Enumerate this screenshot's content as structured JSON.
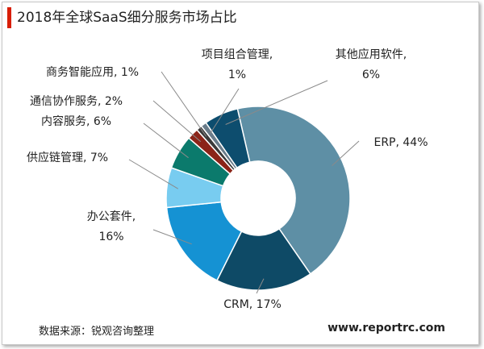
{
  "title": "2018年全球SaaS细分服务市场占比",
  "colors": {
    "title_accent": "#d81e06",
    "ring_inner": "#ffffff",
    "leader_line": "#8a8a8a"
  },
  "chart_data": {
    "type": "pie",
    "donut": true,
    "title": "2018年全球SaaS细分服务市场占比",
    "unit": "%",
    "legend": "none",
    "slices": [
      {
        "name": "ERP",
        "value": 44,
        "color": "#5e8fa5",
        "label_lines": [
          "ERP, 44%"
        ]
      },
      {
        "name": "CRM",
        "value": 17,
        "color": "#0e4a66",
        "label_lines": [
          "CRM, 17%"
        ]
      },
      {
        "name": "办公套件",
        "value": 16,
        "color": "#1592d3",
        "label_lines": [
          "办公套件,",
          "16%"
        ]
      },
      {
        "name": "供应链管理",
        "value": 7,
        "color": "#78ccf0",
        "label_lines": [
          "供应链管理, 7%"
        ]
      },
      {
        "name": "内容服务",
        "value": 6,
        "color": "#0b7a6c",
        "label_lines": [
          "内容服务, 6%"
        ]
      },
      {
        "name": "通信协作服务",
        "value": 2,
        "color": "#8b2418",
        "label_lines": [
          "通信协作服务, 2%"
        ]
      },
      {
        "name": "商务智能应用",
        "value": 1,
        "color": "#3a3a3a",
        "label_lines": [
          "商务智能应用, 1%"
        ]
      },
      {
        "name": "项目组合管理",
        "value": 1,
        "color": "#6a7c8a",
        "label_lines": [
          "项目组合管理,",
          "1%"
        ]
      },
      {
        "name": "其他应用软件",
        "value": 6,
        "color": "#0d4d6e",
        "label_lines": [
          "其他应用软件,",
          "6%"
        ]
      }
    ]
  },
  "footer": {
    "source": "数据来源：锐观咨询整理",
    "website": "www.reportrc.com"
  }
}
